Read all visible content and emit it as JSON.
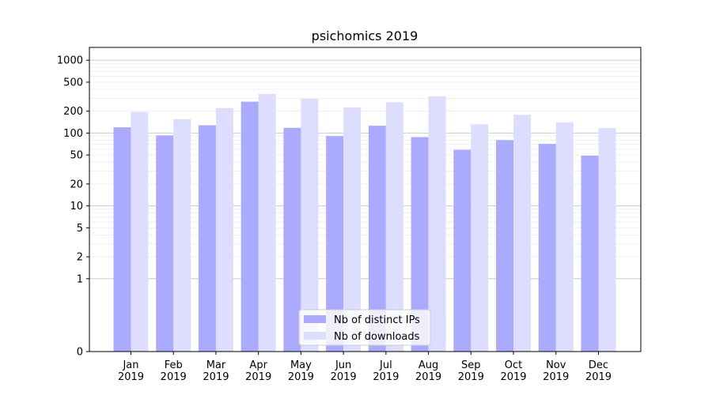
{
  "chart_data": {
    "type": "bar",
    "title": "psichomics 2019",
    "xlabel": "",
    "ylabel": "",
    "y_scale": "symlog",
    "ylim": [
      0,
      1500
    ],
    "yticks": [
      0,
      1,
      2,
      5,
      10,
      20,
      50,
      100,
      200,
      500,
      1000
    ],
    "ytick_labels": [
      "0",
      "1",
      "2",
      "5",
      "10",
      "20",
      "50",
      "100",
      "200",
      "500",
      "1000"
    ],
    "grid": true,
    "legend_position": "bottom-center",
    "categories": [
      "Jan\n2019",
      "Feb\n2019",
      "Mar\n2019",
      "Apr\n2019",
      "May\n2019",
      "Jun\n2019",
      "Jul\n2019",
      "Aug\n2019",
      "Sep\n2019",
      "Oct\n2019",
      "Nov\n2019",
      "Dec\n2019"
    ],
    "category_lines": [
      [
        "Jan",
        "2019"
      ],
      [
        "Feb",
        "2019"
      ],
      [
        "Mar",
        "2019"
      ],
      [
        "Apr",
        "2019"
      ],
      [
        "May",
        "2019"
      ],
      [
        "Jun",
        "2019"
      ],
      [
        "Jul",
        "2019"
      ],
      [
        "Aug",
        "2019"
      ],
      [
        "Sep",
        "2019"
      ],
      [
        "Oct",
        "2019"
      ],
      [
        "Nov",
        "2019"
      ],
      [
        "Dec",
        "2019"
      ]
    ],
    "series": [
      {
        "name": "Nb of distinct IPs",
        "color": "#aaaaff",
        "values": [
          120,
          93,
          128,
          270,
          118,
          91,
          126,
          88,
          59,
          80,
          71,
          49
        ]
      },
      {
        "name": "Nb of downloads",
        "color": "#ddddff",
        "values": [
          195,
          155,
          220,
          345,
          295,
          225,
          265,
          320,
          132,
          178,
          140,
          117
        ]
      }
    ]
  }
}
